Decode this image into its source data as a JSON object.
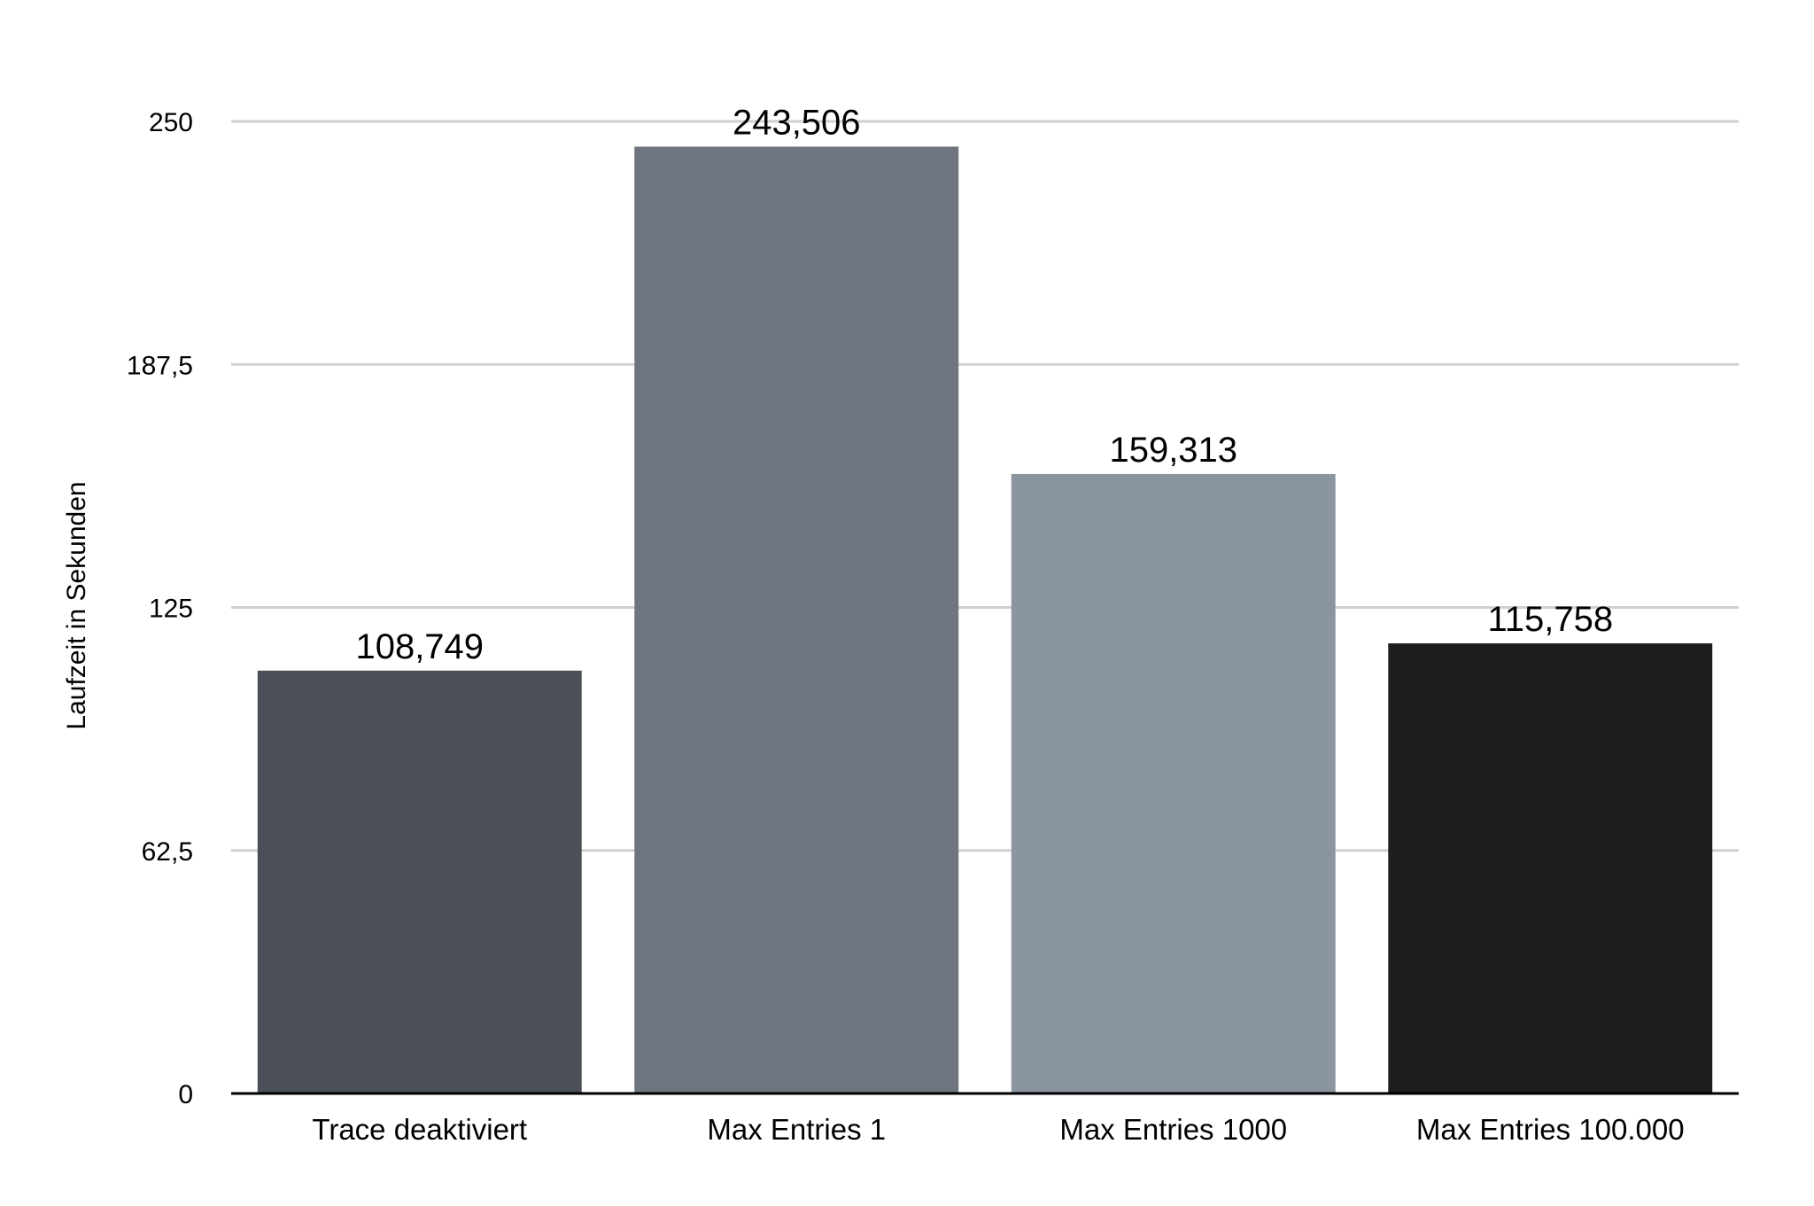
{
  "chart_data": {
    "type": "bar",
    "title": "",
    "xlabel": "",
    "ylabel": "Laufzeit in Sekunden",
    "ylim": [
      0,
      250
    ],
    "yticks": [
      0,
      62.5,
      125,
      187.5,
      250
    ],
    "ytick_labels": [
      "0",
      "62,5",
      "125",
      "187,5",
      "250"
    ],
    "grid": true,
    "legend": "none",
    "categories": [
      "Trace deaktiviert",
      "Max Entries 1",
      "Max Entries 1000",
      "Max Entries 100.000"
    ],
    "values": [
      108.749,
      243.506,
      159.313,
      115.758
    ],
    "value_labels": [
      "108,749",
      "243,506",
      "159,313",
      "115,758"
    ],
    "colors": [
      "#4b4f57",
      "#6e757f",
      "#8a95a0",
      "#1e1e1e"
    ],
    "grid_color": "#d0d0d0",
    "axis_color": "#000000"
  }
}
